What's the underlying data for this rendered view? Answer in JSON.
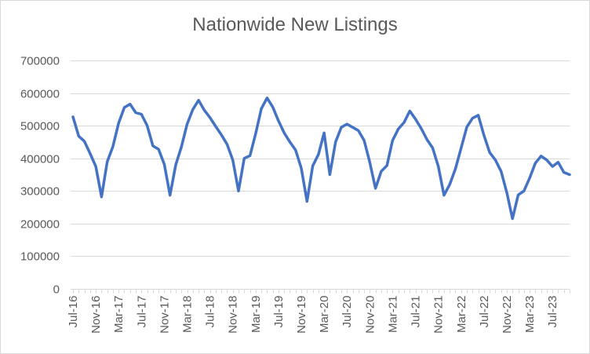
{
  "chart_data": {
    "type": "line",
    "title": "Nationwide New Listings",
    "xlabel": "",
    "ylabel": "",
    "ylim": [
      0,
      700000
    ],
    "y_ticks": [
      "0",
      "100000",
      "200000",
      "300000",
      "400000",
      "500000",
      "600000",
      "700000"
    ],
    "x_tick_labels": [
      "Jul-16",
      "Nov-16",
      "Mar-17",
      "Jul-17",
      "Nov-17",
      "Mar-18",
      "Jul-18",
      "Nov-18",
      "Mar-19",
      "Jul-19",
      "Nov-19",
      "Mar-20",
      "Jul-20",
      "Nov-20",
      "Mar-21",
      "Jul-21",
      "Nov-21",
      "Mar-22",
      "Jul-22",
      "Nov-22",
      "Mar-23",
      "Jul-23"
    ],
    "x_tick_every": 4,
    "grid": true,
    "legend": "none",
    "series": [
      {
        "color": "#4472c4",
        "values": [
          527000,
          468000,
          452000,
          415000,
          375000,
          282000,
          390000,
          436000,
          508000,
          556000,
          566000,
          540000,
          535000,
          500000,
          438000,
          428000,
          382000,
          287000,
          380000,
          435000,
          505000,
          550000,
          578000,
          548000,
          525000,
          498000,
          472000,
          443000,
          395000,
          300000,
          400000,
          408000,
          475000,
          552000,
          585000,
          557000,
          515000,
          478000,
          450000,
          425000,
          370000,
          268000,
          377000,
          412000,
          478000,
          350000,
          450000,
          495000,
          505000,
          495000,
          485000,
          455000,
          388000,
          308000,
          360000,
          378000,
          455000,
          490000,
          510000,
          545000,
          520000,
          492000,
          458000,
          432000,
          375000,
          287000,
          320000,
          368000,
          432000,
          496000,
          523000,
          532000,
          470000,
          418000,
          395000,
          360000,
          295000,
          215000,
          288000,
          300000,
          340000,
          385000,
          407000,
          395000,
          375000,
          388000,
          357000,
          350000
        ]
      }
    ]
  }
}
